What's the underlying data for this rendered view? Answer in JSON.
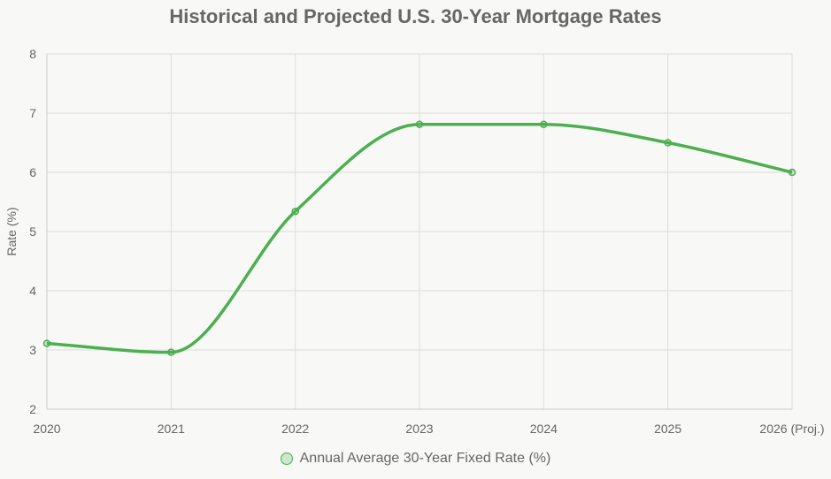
{
  "chart_data": {
    "type": "line",
    "title": "Historical and Projected U.S. 30-Year Mortgage Rates",
    "xlabel": "",
    "ylabel": "Rate (%)",
    "categories": [
      "2020",
      "2021",
      "2022",
      "2023",
      "2024",
      "2025",
      "2026 (Proj.)"
    ],
    "series": [
      {
        "name": "Annual Average 30-Year Fixed Rate (%)",
        "values": [
          3.11,
          2.96,
          5.34,
          6.81,
          6.81,
          6.5,
          6.0
        ],
        "color": "#4caf50"
      }
    ],
    "ylim": [
      2,
      8
    ],
    "yticks": [
      "2",
      "3",
      "4",
      "5",
      "6",
      "7",
      "8"
    ],
    "grid": true,
    "legend": "bottom"
  }
}
